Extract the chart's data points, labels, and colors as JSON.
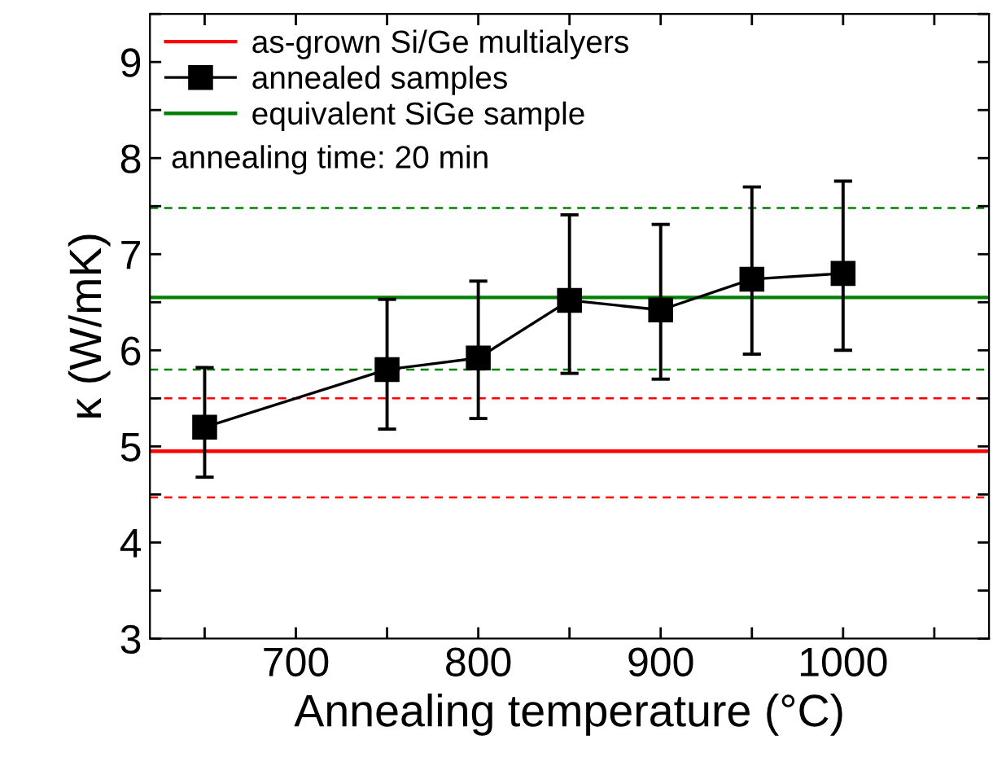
{
  "chart_data": {
    "type": "line",
    "xlabel": "Annealing temperature (°C)",
    "ylabel": "κ (W/mK)",
    "x": [
      650,
      750,
      800,
      850,
      900,
      950,
      1000
    ],
    "series": [
      {
        "name": "annealed samples",
        "color": "#000000",
        "values": [
          5.2,
          5.8,
          5.92,
          6.52,
          6.42,
          6.74,
          6.8
        ],
        "errors": [
          [
            4.68,
            5.82
          ],
          [
            5.18,
            6.53
          ],
          [
            5.29,
            6.72
          ],
          [
            5.76,
            7.41
          ],
          [
            5.7,
            7.31
          ],
          [
            5.96,
            7.7
          ],
          [
            6.0,
            7.76
          ]
        ]
      }
    ],
    "ref_lines": [
      {
        "axis": "y",
        "value": 4.95,
        "label": "as-grown Si/Ge multialyers",
        "color": "#ff0000",
        "line_style": "solid"
      },
      {
        "axis": "y",
        "value": 5.5,
        "color": "#ff0000",
        "line_style": "dashed"
      },
      {
        "axis": "y",
        "value": 4.47,
        "color": "#ff0000",
        "line_style": "dashed"
      },
      {
        "axis": "y",
        "value": 6.55,
        "label": "equivalent SiGe sample",
        "color": "#008000",
        "line_style": "solid"
      },
      {
        "axis": "y",
        "value": 7.48,
        "color": "#008000",
        "line_style": "dashed"
      },
      {
        "axis": "y",
        "value": 5.8,
        "color": "#008000",
        "line_style": "dashed"
      }
    ],
    "annotations": [
      "annealing time: 20 min"
    ],
    "xlim": [
      620,
      1080
    ],
    "xticks": [
      {
        "value": 650,
        "label": null
      },
      700,
      {
        "value": 750,
        "label": null
      },
      800,
      {
        "value": 850,
        "label": null
      },
      900,
      {
        "value": 950,
        "label": null
      },
      1000,
      {
        "value": 1050,
        "label": null
      }
    ],
    "ylim": [
      3,
      9.5
    ],
    "yticks": [
      3,
      {
        "value": 3.5,
        "label": null
      },
      4,
      {
        "value": 4.5,
        "label": null
      },
      5,
      {
        "value": 5.5,
        "label": null
      },
      6,
      {
        "value": 6.5,
        "label": null
      },
      7,
      {
        "value": 7.5,
        "label": null
      },
      8,
      {
        "value": 8.5,
        "label": null
      },
      9,
      {
        "value": 9.5,
        "label": null
      }
    ],
    "marker": "square",
    "line_style": "solid",
    "grid": false,
    "legend": "top left"
  }
}
